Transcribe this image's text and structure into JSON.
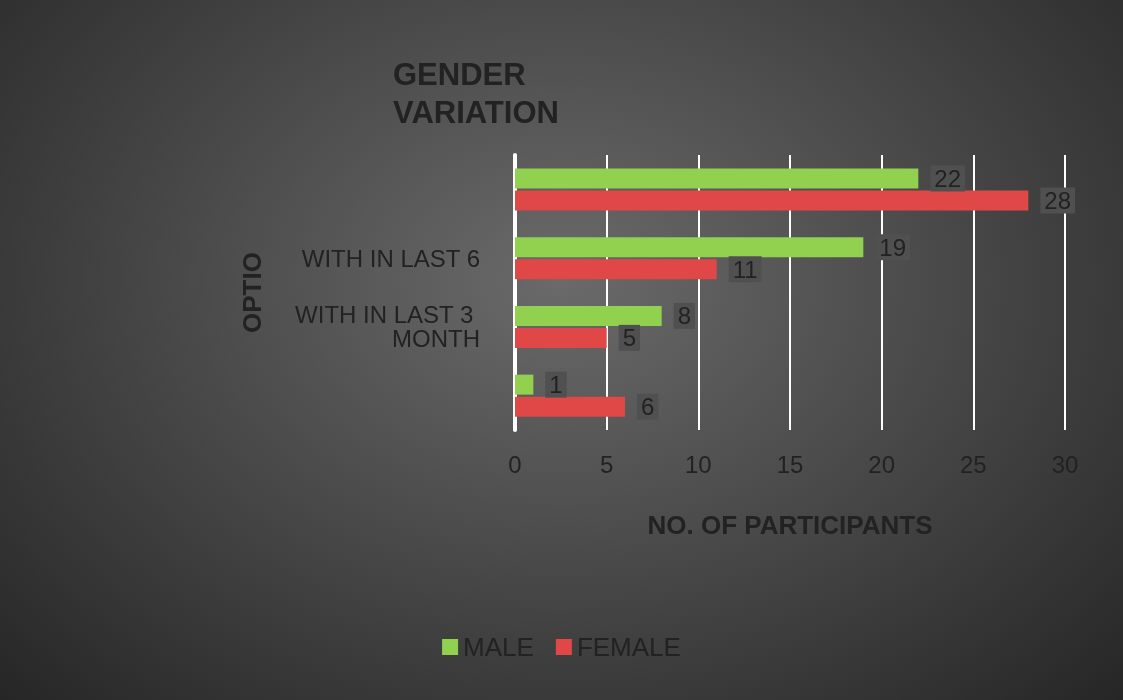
{
  "chart_data": {
    "type": "bar",
    "orientation": "horizontal",
    "title": "GENDER VARIATION",
    "xlabel": "NO. OF PARTICIPANTS",
    "ylabel": "OPTIO",
    "categories": [
      null,
      "WITH IN LAST 6",
      "WITH IN LAST 3 MONTH",
      null
    ],
    "series": [
      {
        "name": "MALE",
        "color": "#92d050",
        "values": [
          22,
          19,
          8,
          1
        ]
      },
      {
        "name": "FEMALE",
        "color": "#e04848",
        "values": [
          28,
          11,
          5,
          6
        ]
      }
    ],
    "xlim": [
      0,
      30
    ],
    "xticks": [
      0,
      5,
      10,
      15,
      20,
      25,
      30
    ],
    "grid": "x",
    "legend": "bottom",
    "data_labels": true
  }
}
